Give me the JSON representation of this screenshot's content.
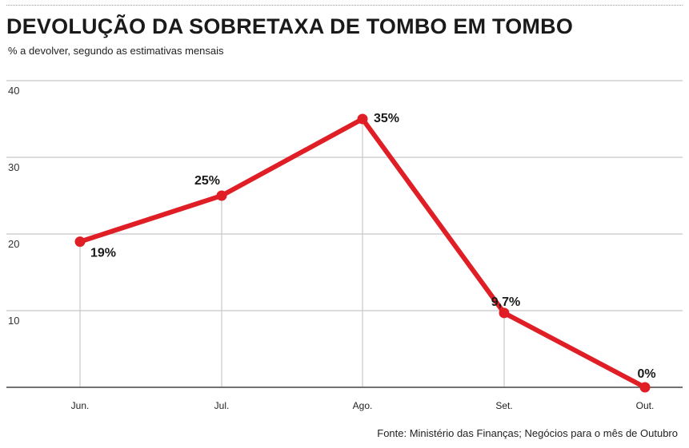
{
  "title": "DEVOLUÇÃO DA SOBRETAXA DE TOMBO EM TOMBO",
  "subtitle": "% a devolver, segundo as estimativas mensais",
  "source": "Fonte: Ministério das Finanças; Negócios para o mês de Outubro",
  "colors": {
    "line": "#e01e26",
    "grid": "#c8c8c8",
    "axis": "#444444"
  },
  "chart_data": {
    "type": "line",
    "title": "DEVOLUÇÃO DA SOBRETAXA DE TOMBO EM TOMBO",
    "subtitle": "% a devolver, segundo as estimativas mensais",
    "categories": [
      "Jun.",
      "Jul.",
      "Ago.",
      "Set.",
      "Out."
    ],
    "values": [
      19,
      25,
      35,
      9.7,
      0
    ],
    "data_labels": [
      "19%",
      "25%",
      "35%",
      "9,7%",
      "0%"
    ],
    "yticks": [
      "10",
      "20",
      "30",
      "40"
    ],
    "ylim": [
      0,
      40
    ],
    "grid": true,
    "legend": "none"
  }
}
